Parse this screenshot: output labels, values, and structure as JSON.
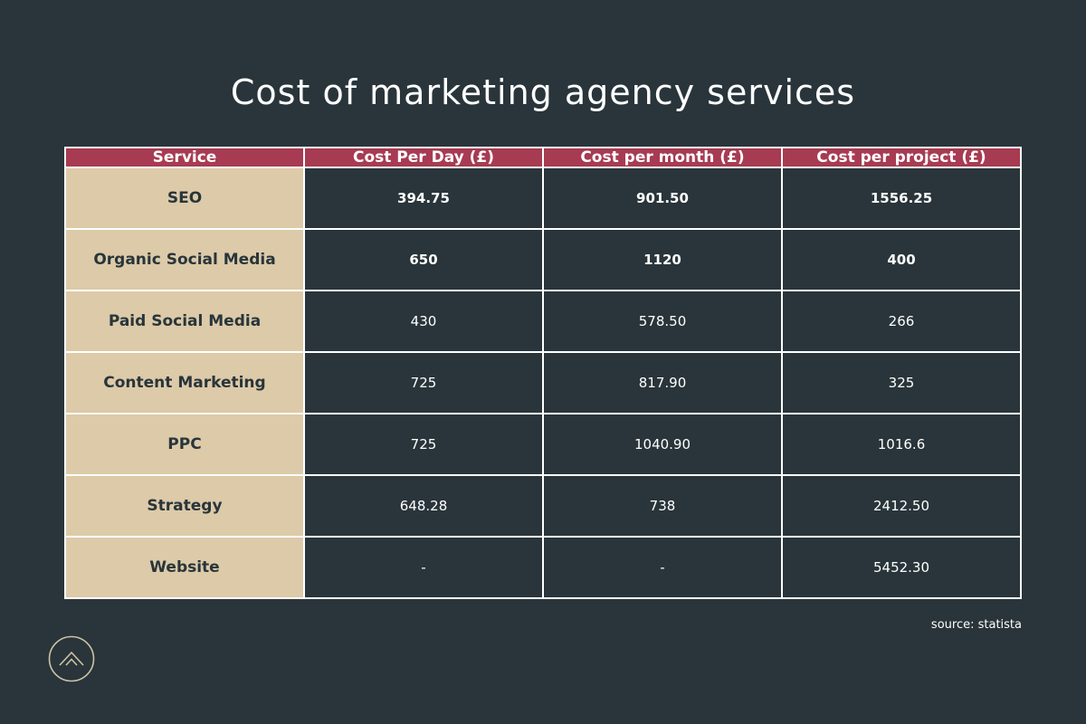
{
  "title": "Cost of marketing agency services",
  "source": "source: statista",
  "colors": {
    "background": "#29353a",
    "header": "#a73b52",
    "service_column": "#dccaa9",
    "grid_lines": "#ffffff"
  },
  "logo_icon": "mountain-peak-icon",
  "chart_data": {
    "type": "table",
    "title": "Cost of marketing agency services",
    "columns": [
      "Service",
      "Cost Per Day (£)",
      "Cost per month (£)",
      "Cost per project (£)"
    ],
    "rows": [
      {
        "service": "SEO",
        "per_day": "394.75",
        "per_month": "901.50",
        "per_project": "1556.25",
        "bold": true
      },
      {
        "service": "Organic Social Media",
        "per_day": "650",
        "per_month": "1120",
        "per_project": "400",
        "bold": true
      },
      {
        "service": "Paid Social Media",
        "per_day": "430",
        "per_month": "578.50",
        "per_project": "266",
        "bold": false
      },
      {
        "service": "Content Marketing",
        "per_day": "725",
        "per_month": "817.90",
        "per_project": "325",
        "bold": false
      },
      {
        "service": "PPC",
        "per_day": "725",
        "per_month": "1040.90",
        "per_project": "1016.6",
        "bold": false
      },
      {
        "service": "Strategy",
        "per_day": "648.28",
        "per_month": "738",
        "per_project": "2412.50",
        "bold": false
      },
      {
        "service": "Website",
        "per_day": "-",
        "per_month": "-",
        "per_project": "5452.30",
        "bold": false
      }
    ]
  }
}
